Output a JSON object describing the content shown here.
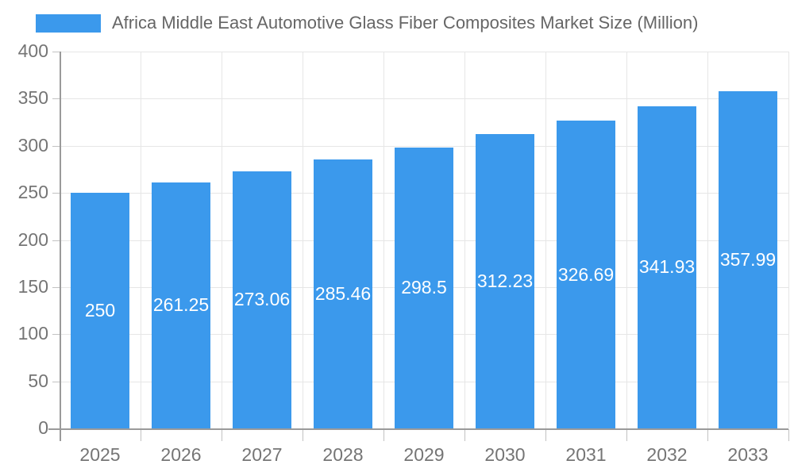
{
  "legend": {
    "swatch_color": "#3B99EC"
  },
  "chart_data": {
    "type": "bar",
    "title": "Africa Middle East Automotive Glass Fiber Composites Market Size (Million)",
    "legend_entries": [
      "Africa Middle East Automotive Glass Fiber Composites Market Size (Million)"
    ],
    "legend_position": "top",
    "categories": [
      "2025",
      "2026",
      "2027",
      "2028",
      "2029",
      "2030",
      "2031",
      "2032",
      "2033"
    ],
    "values": [
      250,
      261.25,
      273.06,
      285.46,
      298.5,
      312.23,
      326.69,
      341.93,
      357.99
    ],
    "value_labels": [
      "250",
      "261.25",
      "273.06",
      "285.46",
      "298.5",
      "312.23",
      "326.69",
      "341.93",
      "357.99"
    ],
    "xlabel": "",
    "ylabel": "",
    "ylim": [
      0,
      400
    ],
    "yticks": [
      0,
      50,
      100,
      150,
      200,
      250,
      300,
      350,
      400
    ],
    "grid": true,
    "bar_color": "#3B99EC",
    "bar_label_color": "#ffffff",
    "grid_color": "#e6e6e6",
    "axis_color": "#9a9a9a",
    "tick_color": "#c2c2c2",
    "text_color": "#757575",
    "title_color": "#666666"
  }
}
